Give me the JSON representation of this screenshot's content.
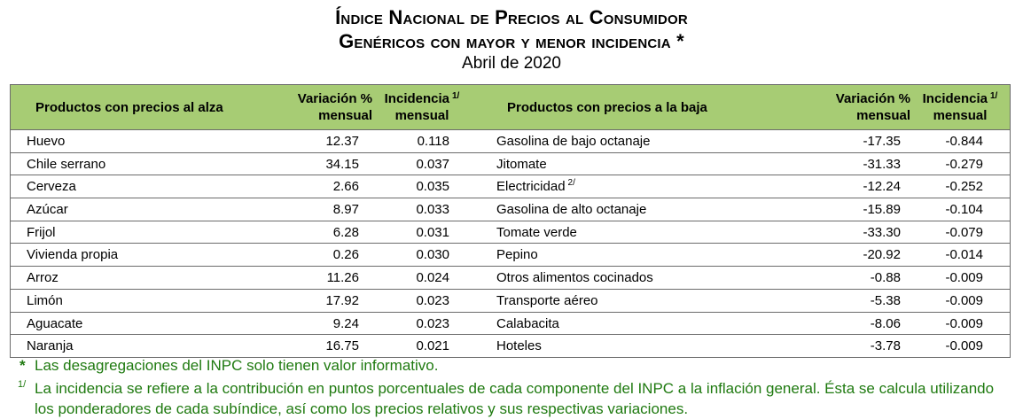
{
  "header": {
    "title_line1": "Índice Nacional de Precios al Consumidor",
    "title_line2": "Genéricos con mayor y menor incidencia",
    "title_marker": "*",
    "subtitle": "Abril de 2020"
  },
  "table": {
    "columns": {
      "products_up": "Productos con precios al alza",
      "variation_up_line1": "Variación %",
      "variation_up_line2": "mensual",
      "incidence_up_line1": "Incidencia",
      "incidence_up_line2": "mensual",
      "incidence_up_note": "1/",
      "products_down": "Productos con precios a la baja",
      "variation_down_line1": "Variación %",
      "variation_down_line2": "mensual",
      "incidence_down_line1": "Incidencia",
      "incidence_down_line2": "mensual",
      "incidence_down_note": "1/"
    },
    "rows": [
      {
        "up_product": "Huevo",
        "up_variation": "12.37",
        "up_incidence": "0.118",
        "down_product": "Gasolina de bajo octanaje",
        "down_note": "",
        "down_variation": "-17.35",
        "down_incidence": "-0.844"
      },
      {
        "up_product": "Chile serrano",
        "up_variation": "34.15",
        "up_incidence": "0.037",
        "down_product": "Jitomate",
        "down_note": "",
        "down_variation": "-31.33",
        "down_incidence": "-0.279"
      },
      {
        "up_product": "Cerveza",
        "up_variation": "2.66",
        "up_incidence": "0.035",
        "down_product": "Electricidad",
        "down_note": "2/",
        "down_variation": "-12.24",
        "down_incidence": "-0.252"
      },
      {
        "up_product": "Azúcar",
        "up_variation": "8.97",
        "up_incidence": "0.033",
        "down_product": "Gasolina de alto octanaje",
        "down_note": "",
        "down_variation": "-15.89",
        "down_incidence": "-0.104"
      },
      {
        "up_product": "Frijol",
        "up_variation": "6.28",
        "up_incidence": "0.031",
        "down_product": "Tomate verde",
        "down_note": "",
        "down_variation": "-33.30",
        "down_incidence": "-0.079"
      },
      {
        "up_product": "Vivienda propia",
        "up_variation": "0.26",
        "up_incidence": "0.030",
        "down_product": "Pepino",
        "down_note": "",
        "down_variation": "-20.92",
        "down_incidence": "-0.014"
      },
      {
        "up_product": "Arroz",
        "up_variation": "11.26",
        "up_incidence": "0.024",
        "down_product": "Otros alimentos cocinados",
        "down_note": "",
        "down_variation": "-0.88",
        "down_incidence": "-0.009"
      },
      {
        "up_product": "Limón",
        "up_variation": "17.92",
        "up_incidence": "0.023",
        "down_product": "Transporte aéreo",
        "down_note": "",
        "down_variation": "-5.38",
        "down_incidence": "-0.009"
      },
      {
        "up_product": "Aguacate",
        "up_variation": "9.24",
        "up_incidence": "0.023",
        "down_product": "Calabacita",
        "down_note": "",
        "down_variation": "-8.06",
        "down_incidence": "-0.009"
      },
      {
        "up_product": "Naranja",
        "up_variation": "16.75",
        "up_incidence": "0.021",
        "down_product": "Hoteles",
        "down_note": "",
        "down_variation": "-3.78",
        "down_incidence": "-0.009"
      }
    ]
  },
  "notes": {
    "note1_mark": "*",
    "note1_text": "Las desagregaciones del INPC solo tienen valor informativo.",
    "note2_mark": "1/",
    "note2_text": "La incidencia se refiere a la contribución en puntos porcentuales de cada componente del INPC a la inflación general. Ésta se calcula utilizando los ponderadores de cada subíndice, así como los precios relativos y sus respectivas variaciones."
  },
  "colors": {
    "header_bg": "#a7cc74",
    "notes_text": "#1f7a10",
    "border": "#6b6b6b"
  }
}
